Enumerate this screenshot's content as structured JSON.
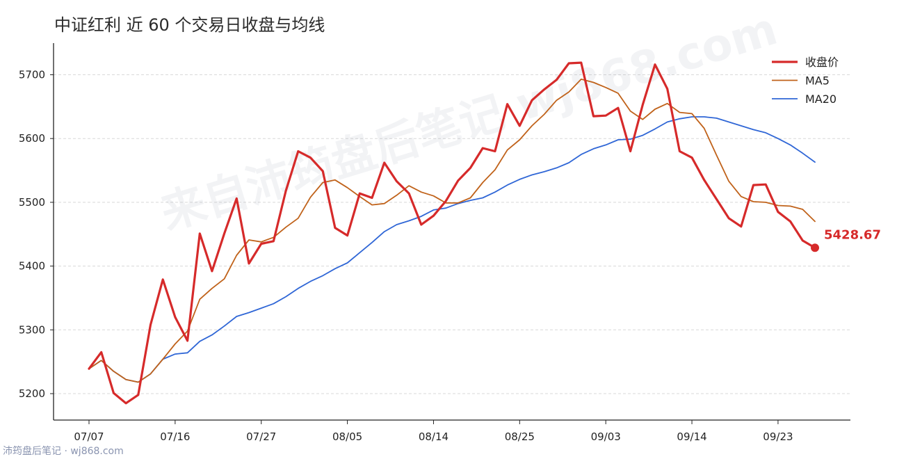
{
  "title": "中证红利 近 60 个交易日收盘与均线",
  "watermark": "来自沛筠盘后笔记 wj868.com",
  "footer": "沛筠盘后笔记 · wj868.com",
  "chart_data": {
    "type": "line",
    "title": "中证红利 近 60 个交易日收盘与均线",
    "ylim": [
      5150,
      5745
    ],
    "y_ticks": [
      5200,
      5300,
      5400,
      5500,
      5600,
      5700
    ],
    "x_ticks": [
      {
        "index": 0,
        "label": "07/07"
      },
      {
        "index": 7,
        "label": "07/16"
      },
      {
        "index": 14,
        "label": "07/27"
      },
      {
        "index": 21,
        "label": "08/05"
      },
      {
        "index": 28,
        "label": "08/14"
      },
      {
        "index": 35,
        "label": "08/25"
      },
      {
        "index": 42,
        "label": "09/03"
      },
      {
        "index": 49,
        "label": "09/14"
      },
      {
        "index": 56,
        "label": "09/23"
      }
    ],
    "grid": "horizontal",
    "legend_position": "top-right",
    "last_value_label": "5428.67",
    "series": [
      {
        "name": "收盘价",
        "color": "#d62a2a",
        "values": [
          5239,
          5265,
          5201,
          5185,
          5198,
          5308,
          5379,
          5320,
          5283,
          5451,
          5392,
          5451,
          5506,
          5404,
          5435,
          5439,
          5518,
          5580,
          5570,
          5549,
          5460,
          5448,
          5514,
          5507,
          5562,
          5533,
          5514,
          5465,
          5479,
          5502,
          5534,
          5554,
          5585,
          5580,
          5654,
          5620,
          5660,
          5677,
          5692,
          5718,
          5719,
          5635,
          5636,
          5648,
          5580,
          5653,
          5716,
          5678,
          5580,
          5570,
          5535,
          5505,
          5475,
          5462,
          5527,
          5528,
          5485,
          5470,
          5440,
          5428.67
        ]
      },
      {
        "name": "MA5",
        "color": "#c0621a",
        "values": [
          5239,
          5252,
          5235,
          5222,
          5218,
          5231,
          5254,
          5278,
          5298,
          5348,
          5365,
          5380,
          5417,
          5441,
          5438,
          5445,
          5461,
          5475,
          5508,
          5531,
          5535,
          5523,
          5509,
          5496,
          5498,
          5511,
          5526,
          5516,
          5510,
          5499,
          5499,
          5507,
          5531,
          5551,
          5582,
          5598,
          5620,
          5638,
          5660,
          5673,
          5693,
          5688,
          5680,
          5671,
          5643,
          5630,
          5646,
          5655,
          5641,
          5639,
          5616,
          5574,
          5533,
          5509,
          5501,
          5500,
          5495,
          5494,
          5489,
          5470
        ]
      },
      {
        "name": "MA20",
        "color": "#2f66d6",
        "values": [
          5239,
          5252,
          5235,
          5222,
          5218,
          5231,
          5254,
          5262,
          5264,
          5282,
          5292,
          5306,
          5321,
          5327,
          5334,
          5341,
          5352,
          5365,
          5376,
          5385,
          5396,
          5405,
          5421,
          5437,
          5454,
          5465,
          5471,
          5478,
          5488,
          5491,
          5498,
          5503,
          5507,
          5516,
          5527,
          5536,
          5543,
          5548,
          5554,
          5562,
          5575,
          5584,
          5590,
          5598,
          5599,
          5605,
          5615,
          5626,
          5631,
          5634,
          5634,
          5632,
          5626,
          5620,
          5614,
          5609,
          5600,
          5590,
          5577,
          5563
        ]
      }
    ]
  }
}
